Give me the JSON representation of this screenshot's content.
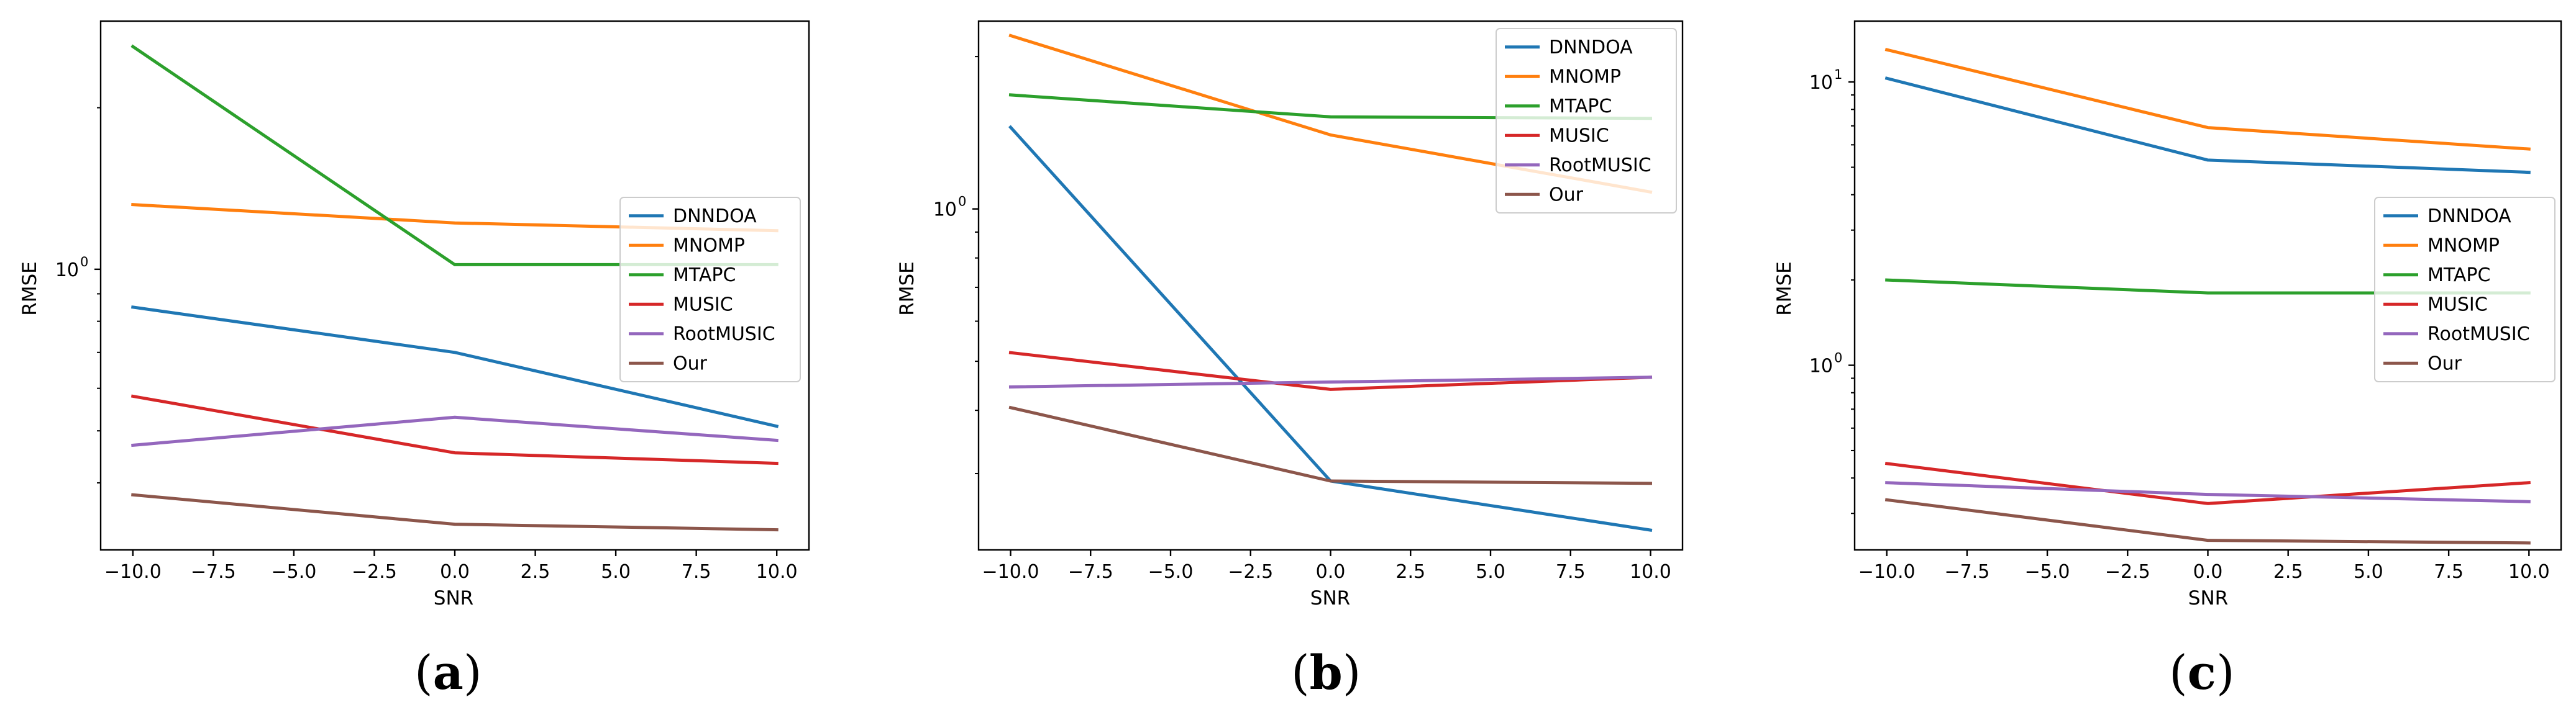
{
  "chart_data": [
    {
      "type": "line",
      "panel_label": "a",
      "xlabel": "SNR",
      "ylabel": "RMSE",
      "y_scale": "log",
      "x": [
        -10.0,
        0.0,
        10.0
      ],
      "xlim": [
        -11.0,
        11.0
      ],
      "ylim": [
        0.3,
        2.9
      ],
      "x_ticks": [
        -10.0,
        -7.5,
        -5.0,
        -2.5,
        0.0,
        2.5,
        5.0,
        7.5,
        10.0
      ],
      "x_tick_labels": [
        "−10.0",
        "−7.5",
        "−5.0",
        "−2.5",
        "0.0",
        "2.5",
        "5.0",
        "7.5",
        "10.0"
      ],
      "y_major_ticks": [
        1.0
      ],
      "y_major_labels": [
        "10",
        "0"
      ],
      "y_minor_ticks": [
        0.4,
        0.5,
        0.6,
        0.7,
        0.8,
        0.9,
        2.0
      ],
      "legend_position": "center-right",
      "series": [
        {
          "name": "DNNDOA",
          "color": "#1f77b4",
          "values": [
            0.85,
            0.7,
            0.51
          ]
        },
        {
          "name": "MNOMP",
          "color": "#ff7f0e",
          "values": [
            1.32,
            1.22,
            1.18
          ]
        },
        {
          "name": "MTAPC",
          "color": "#2ca02c",
          "values": [
            2.6,
            1.02,
            1.02
          ]
        },
        {
          "name": "MUSIC",
          "color": "#d62728",
          "values": [
            0.58,
            0.455,
            0.435
          ]
        },
        {
          "name": "RootMUSIC",
          "color": "#9467bd",
          "values": [
            0.47,
            0.53,
            0.48
          ]
        },
        {
          "name": "Our",
          "color": "#8c564b",
          "values": [
            0.38,
            0.335,
            0.327
          ]
        }
      ]
    },
    {
      "type": "line",
      "panel_label": "b",
      "xlabel": "SNR",
      "ylabel": "RMSE",
      "y_scale": "log",
      "x": [
        -10.0,
        0.0,
        10.0
      ],
      "xlim": [
        -11.0,
        11.0
      ],
      "ylim": [
        0.212,
        2.35
      ],
      "x_ticks": [
        -10.0,
        -7.5,
        -5.0,
        -2.5,
        0.0,
        2.5,
        5.0,
        7.5,
        10.0
      ],
      "x_tick_labels": [
        "−10.0",
        "−7.5",
        "−5.0",
        "−2.5",
        "0.0",
        "2.5",
        "5.0",
        "7.5",
        "10.0"
      ],
      "y_major_ticks": [
        1.0
      ],
      "y_major_labels": [
        "10",
        "0"
      ],
      "y_minor_ticks": [
        0.3,
        0.4,
        0.5,
        0.6,
        0.7,
        0.8,
        0.9,
        2.0
      ],
      "legend_position": "upper-right",
      "series": [
        {
          "name": "DNNDOA",
          "color": "#1f77b4",
          "values": [
            1.45,
            0.29,
            0.232
          ]
        },
        {
          "name": "MNOMP",
          "color": "#ff7f0e",
          "values": [
            2.2,
            1.4,
            1.08
          ]
        },
        {
          "name": "MTAPC",
          "color": "#2ca02c",
          "values": [
            1.68,
            1.52,
            1.51
          ]
        },
        {
          "name": "MUSIC",
          "color": "#d62728",
          "values": [
            0.52,
            0.44,
            0.465
          ]
        },
        {
          "name": "RootMUSIC",
          "color": "#9467bd",
          "values": [
            0.445,
            0.455,
            0.465
          ]
        },
        {
          "name": "Our",
          "color": "#8c564b",
          "values": [
            0.405,
            0.29,
            0.287
          ]
        }
      ]
    },
    {
      "type": "line",
      "panel_label": "c",
      "xlabel": "SNR",
      "ylabel": "RMSE",
      "y_scale": "log",
      "x": [
        -10.0,
        0.0,
        10.0
      ],
      "xlim": [
        -11.0,
        11.0
      ],
      "ylim": [
        0.223,
        16.4
      ],
      "x_ticks": [
        -10.0,
        -7.5,
        -5.0,
        -2.5,
        0.0,
        2.5,
        5.0,
        7.5,
        10.0
      ],
      "x_tick_labels": [
        "−10.0",
        "−7.5",
        "−5.0",
        "−2.5",
        "0.0",
        "2.5",
        "5.0",
        "7.5",
        "10.0"
      ],
      "y_major_ticks": [
        1.0,
        10.0
      ],
      "y_major_labels": [
        "10",
        "0",
        "10",
        "1"
      ],
      "y_minor_ticks": [
        0.3,
        0.4,
        0.5,
        0.6,
        0.7,
        0.8,
        0.9,
        2.0,
        3.0,
        4.0,
        5.0,
        6.0,
        7.0,
        8.0,
        9.0
      ],
      "legend_position": "center-right",
      "series": [
        {
          "name": "DNNDOA",
          "color": "#1f77b4",
          "values": [
            10.3,
            5.3,
            4.8
          ]
        },
        {
          "name": "MNOMP",
          "color": "#ff7f0e",
          "values": [
            13.0,
            6.9,
            5.8
          ]
        },
        {
          "name": "MTAPC",
          "color": "#2ca02c",
          "values": [
            2.0,
            1.8,
            1.8
          ]
        },
        {
          "name": "MUSIC",
          "color": "#d62728",
          "values": [
            0.45,
            0.325,
            0.385
          ]
        },
        {
          "name": "RootMUSIC",
          "color": "#9467bd",
          "values": [
            0.385,
            0.35,
            0.33
          ]
        },
        {
          "name": "Our",
          "color": "#8c564b",
          "values": [
            0.335,
            0.241,
            0.236
          ]
        }
      ]
    }
  ]
}
